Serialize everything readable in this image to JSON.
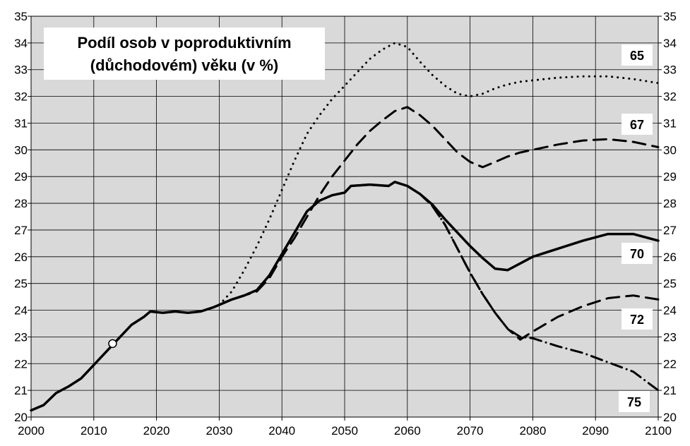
{
  "chart_data": {
    "type": "line",
    "title_lines": [
      "Podíl osob v poproduktivním",
      "(důchodovém) věku (v %)"
    ],
    "xlabel": "",
    "ylabel": "",
    "xlim": [
      2000,
      2100
    ],
    "ylim": [
      20,
      35
    ],
    "x_ticks": [
      2000,
      2010,
      2020,
      2030,
      2040,
      2050,
      2060,
      2070,
      2080,
      2090,
      2100
    ],
    "y_ticks": [
      20,
      21,
      22,
      23,
      24,
      25,
      26,
      27,
      28,
      29,
      30,
      31,
      32,
      33,
      34,
      35
    ],
    "grid": true,
    "colors": {
      "plot_background": "#d9d9d9",
      "grid": "#000000",
      "line": "#000000",
      "marker_fill": "#ffffff"
    },
    "marker_point": {
      "x": 2013,
      "y": 22.75
    },
    "historical": {
      "x": [
        2000,
        2002,
        2004,
        2006,
        2008,
        2010,
        2012,
        2014,
        2016,
        2018,
        2019,
        2021,
        2023,
        2025,
        2027,
        2029,
        2030
      ],
      "y": [
        20.25,
        20.45,
        20.9,
        21.15,
        21.45,
        21.95,
        22.45,
        22.95,
        23.45,
        23.75,
        23.95,
        23.9,
        23.95,
        23.9,
        23.95,
        24.1,
        24.2
      ]
    },
    "series": [
      {
        "name": "65",
        "style": "dotted",
        "x": [
          2030,
          2032,
          2034,
          2036,
          2038,
          2040,
          2042,
          2044,
          2046,
          2048,
          2050,
          2052,
          2054,
          2056,
          2058,
          2060,
          2062,
          2064,
          2066,
          2068,
          2070,
          2072,
          2074,
          2076,
          2078,
          2080,
          2084,
          2088,
          2092,
          2096,
          2100
        ],
        "y": [
          24.2,
          24.7,
          25.5,
          26.4,
          27.4,
          28.5,
          29.6,
          30.6,
          31.3,
          31.9,
          32.4,
          32.9,
          33.4,
          33.75,
          34.0,
          33.85,
          33.3,
          32.8,
          32.4,
          32.1,
          32.0,
          32.1,
          32.3,
          32.45,
          32.55,
          32.6,
          32.7,
          32.75,
          32.75,
          32.65,
          32.5
        ]
      },
      {
        "name": "67",
        "style": "dashed",
        "x": [
          2030,
          2032,
          2034,
          2036,
          2038,
          2040,
          2042,
          2044,
          2046,
          2048,
          2050,
          2052,
          2054,
          2056,
          2058,
          2060,
          2062,
          2064,
          2066,
          2068,
          2070,
          2072,
          2074,
          2076,
          2078,
          2080,
          2084,
          2088,
          2092,
          2096,
          2100
        ],
        "y": [
          24.2,
          24.4,
          24.55,
          24.7,
          25.2,
          26.0,
          26.7,
          27.5,
          28.3,
          29.0,
          29.6,
          30.2,
          30.7,
          31.1,
          31.45,
          31.6,
          31.3,
          30.9,
          30.4,
          29.9,
          29.55,
          29.35,
          29.55,
          29.75,
          29.9,
          30.0,
          30.2,
          30.35,
          30.4,
          30.3,
          30.1
        ]
      },
      {
        "name": "70",
        "style": "solid",
        "x": [
          2030,
          2032,
          2034,
          2036,
          2038,
          2040,
          2042,
          2044,
          2046,
          2048,
          2050,
          2051,
          2054,
          2057,
          2058,
          2060,
          2062,
          2064,
          2066,
          2068,
          2070,
          2072,
          2074,
          2076,
          2078,
          2080,
          2084,
          2088,
          2092,
          2096,
          2100
        ],
        "y": [
          24.2,
          24.4,
          24.55,
          24.75,
          25.3,
          26.1,
          26.9,
          27.7,
          28.1,
          28.3,
          28.4,
          28.65,
          28.7,
          28.65,
          28.8,
          28.65,
          28.35,
          27.95,
          27.4,
          26.9,
          26.4,
          25.95,
          25.55,
          25.5,
          25.75,
          26.0,
          26.3,
          26.6,
          26.85,
          26.85,
          26.6
        ]
      },
      {
        "name": "72",
        "style": "dashed",
        "x": [
          2030,
          2032,
          2034,
          2036,
          2038,
          2040,
          2042,
          2044,
          2046,
          2048,
          2050,
          2051,
          2054,
          2057,
          2058,
          2060,
          2062,
          2064,
          2066,
          2068,
          2070,
          2072,
          2074,
          2076,
          2078,
          2080,
          2084,
          2088,
          2092,
          2096,
          2100
        ],
        "y": [
          24.2,
          24.4,
          24.55,
          24.75,
          25.3,
          26.1,
          26.9,
          27.7,
          28.1,
          28.3,
          28.4,
          28.65,
          28.7,
          28.65,
          28.8,
          28.65,
          28.35,
          27.9,
          27.2,
          26.3,
          25.4,
          24.6,
          23.9,
          23.3,
          22.9,
          23.2,
          23.75,
          24.15,
          24.45,
          24.55,
          24.4
        ]
      },
      {
        "name": "75",
        "style": "dash-dot",
        "x": [
          2030,
          2032,
          2034,
          2036,
          2038,
          2040,
          2042,
          2044,
          2046,
          2048,
          2050,
          2051,
          2054,
          2057,
          2058,
          2060,
          2062,
          2064,
          2066,
          2068,
          2070,
          2072,
          2074,
          2076,
          2078,
          2080,
          2084,
          2088,
          2092,
          2096,
          2100
        ],
        "y": [
          24.2,
          24.4,
          24.55,
          24.75,
          25.3,
          26.1,
          26.9,
          27.7,
          28.1,
          28.3,
          28.4,
          28.65,
          28.7,
          28.65,
          28.8,
          28.65,
          28.35,
          27.9,
          27.2,
          26.3,
          25.4,
          24.6,
          23.9,
          23.3,
          23.0,
          22.95,
          22.65,
          22.4,
          22.05,
          21.7,
          21.0
        ]
      }
    ]
  }
}
